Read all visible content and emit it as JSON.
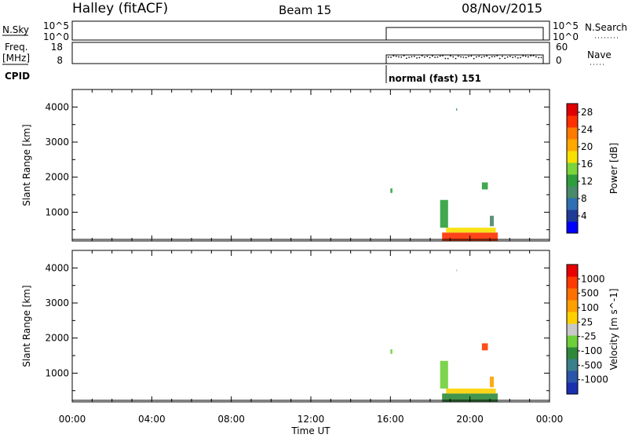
{
  "header": {
    "station": "Halley (fitACF)",
    "beam": "Beam 15",
    "date": "08/Nov/2015"
  },
  "sky_panel": {
    "left_label": "N.Sky",
    "left_ticks": [
      "10^5",
      "10^0"
    ],
    "right_label": "N.Search",
    "right_ticks": [
      "10^5",
      "10^0"
    ]
  },
  "freq_panel": {
    "left_label_1": "Freq.",
    "left_label_2": "[MHz]",
    "left_ticks": [
      "18",
      "8"
    ],
    "right_label": "Nave",
    "right_ticks": [
      "60",
      "0"
    ]
  },
  "cpid": {
    "label": "CPID",
    "mode": "normal (fast) 151"
  },
  "colors": {
    "power": [
      "#0000ff",
      "#1e3c96",
      "#2f6fb3",
      "#4a8a6a",
      "#2e9e3c",
      "#7ad43a",
      "#f7e000",
      "#ffa800",
      "#ff7b00",
      "#ff3000",
      "#e00000"
    ],
    "velocity": [
      "#1a2fb0",
      "#2a55a8",
      "#3a7f8a",
      "#2e8a3a",
      "#6fcf3a",
      "#c8c8c8",
      "#ffd000",
      "#ffa000",
      "#ff7000",
      "#ff3a00",
      "#e80000"
    ]
  },
  "chart_data": [
    {
      "type": "heatmap",
      "name": "power",
      "xlabel": "Time UT",
      "ylabel": "Slant Range [km]",
      "x_ticks": [
        "00:00",
        "04:00",
        "08:00",
        "12:00",
        "16:00",
        "20:00",
        "00:00"
      ],
      "xlim_hours": [
        0,
        24
      ],
      "ylim_km": [
        180,
        4500
      ],
      "y_ticks": [
        1000,
        2000,
        3000,
        4000
      ],
      "colorbar": {
        "label": "Power [dB]",
        "ticks": [
          "4",
          "8",
          "12",
          "16",
          "20",
          "24",
          "28"
        ],
        "range": [
          0,
          30
        ]
      },
      "regions": [
        {
          "t0": 18.6,
          "t1": 21.4,
          "r0": 180,
          "r1": 420,
          "level": 0.86
        },
        {
          "t0": 18.8,
          "t1": 21.3,
          "r0": 420,
          "r1": 560,
          "level": 0.55
        },
        {
          "t0": 18.5,
          "t1": 18.9,
          "r0": 560,
          "r1": 1350,
          "level": 0.35
        },
        {
          "t0": 20.6,
          "t1": 20.9,
          "r0": 1650,
          "r1": 1850,
          "level": 0.35
        },
        {
          "t0": 21.0,
          "t1": 21.2,
          "r0": 600,
          "r1": 900,
          "level": 0.3
        },
        {
          "t0": 16.0,
          "t1": 16.1,
          "r0": 1550,
          "r1": 1680,
          "level": 0.4
        },
        {
          "t0": 19.3,
          "t1": 19.35,
          "r0": 3900,
          "r1": 3960,
          "level": 0.3
        }
      ]
    },
    {
      "type": "heatmap",
      "name": "velocity",
      "xlabel": "Time UT",
      "ylabel": "Slant Range [km]",
      "x_ticks": [
        "00:00",
        "04:00",
        "08:00",
        "12:00",
        "16:00",
        "20:00",
        "00:00"
      ],
      "xlim_hours": [
        0,
        24
      ],
      "ylim_km": [
        180,
        4500
      ],
      "y_ticks": [
        1000,
        2000,
        3000,
        4000
      ],
      "colorbar": {
        "label": "Velocity [m s^-1]",
        "ticks": [
          "1000",
          "500",
          "100",
          "25",
          "-25",
          "-100",
          "-500",
          "-1000"
        ]
      },
      "regions": [
        {
          "t0": 18.6,
          "t1": 21.4,
          "r0": 180,
          "r1": 420,
          "level": 0.32
        },
        {
          "t0": 18.8,
          "t1": 21.3,
          "r0": 420,
          "r1": 560,
          "level": 0.55
        },
        {
          "t0": 18.5,
          "t1": 18.9,
          "r0": 560,
          "r1": 1350,
          "level": 0.35
        },
        {
          "t0": 20.6,
          "t1": 20.9,
          "r0": 1650,
          "r1": 1850,
          "level": 0.85
        },
        {
          "t0": 21.0,
          "t1": 21.2,
          "r0": 600,
          "r1": 900,
          "level": 0.7
        },
        {
          "t0": 16.0,
          "t1": 16.1,
          "r0": 1550,
          "r1": 1680,
          "level": 0.35
        },
        {
          "t0": 19.3,
          "t1": 19.35,
          "r0": 3900,
          "r1": 3960,
          "level": 0.5
        }
      ]
    }
  ]
}
